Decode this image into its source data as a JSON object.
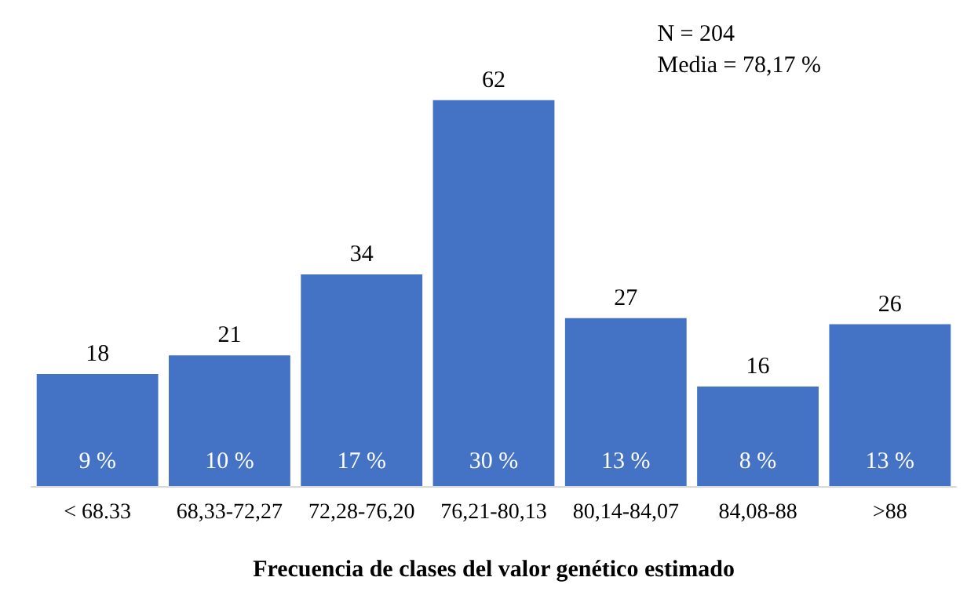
{
  "chart_data": {
    "type": "bar",
    "xlabel": "Frecuencia de clases del valor genético estimado",
    "categories": [
      "< 68.33",
      "68,33-72,27",
      "72,28-76,20",
      "76,21-80,13",
      "80,14-84,07",
      "84,08-88",
      ">88"
    ],
    "values": [
      18,
      21,
      34,
      62,
      27,
      16,
      26
    ],
    "color": "#4472c4",
    "data_labels": true,
    "tick_labels": "x",
    "annotations": [
      "9 %",
      "10 %",
      "17 %",
      "30 %",
      "13 %",
      "8 %",
      "13 %",
      "N = 204",
      "Media = 78,17 %"
    ]
  }
}
